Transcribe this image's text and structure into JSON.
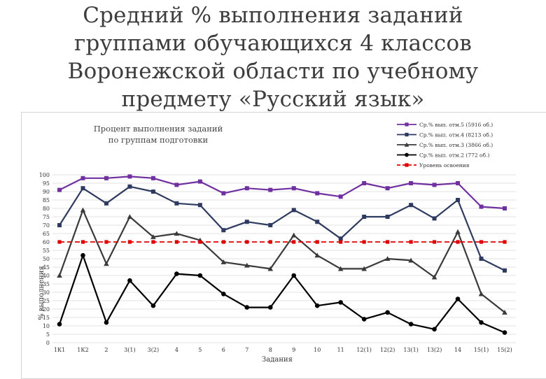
{
  "slide": {
    "title_lines": [
      "Средний % выполнения заданий",
      "группами обучающихся 4 классов",
      "Воронежской области по учебному",
      "предмету «Русский язык»"
    ]
  },
  "chart_data": {
    "type": "line",
    "title_lines": [
      "Процент выполнения заданий",
      "по группам подготовки"
    ],
    "xlabel": "Задания",
    "ylabel": "% выполнения",
    "ylim": [
      0,
      100
    ],
    "yticks": [
      0,
      5,
      10,
      15,
      20,
      25,
      30,
      35,
      40,
      45,
      50,
      55,
      60,
      65,
      70,
      75,
      80,
      85,
      90,
      95,
      100
    ],
    "grid": true,
    "legend_position": "top-right",
    "categories": [
      "1К1",
      "1К2",
      "2",
      "3(1)",
      "3(2)",
      "4",
      "5",
      "6",
      "7",
      "8",
      "9",
      "10",
      "11",
      "12(1)",
      "12(2)",
      "13(1)",
      "13(2)",
      "14",
      "15(1)",
      "15(2)"
    ],
    "series": [
      {
        "name": "Ср.% вып. отм.5 (5916 об.)",
        "color": "#7030a0",
        "marker": "square",
        "dashed": false,
        "values": [
          91,
          98,
          98,
          99,
          98,
          94,
          96,
          89,
          92,
          91,
          92,
          89,
          87,
          95,
          92,
          95,
          94,
          95,
          81,
          80
        ]
      },
      {
        "name": "Ср.% вып. отм.4 (8213 об.)",
        "color": "#2e3a5f",
        "marker": "square",
        "dashed": false,
        "values": [
          70,
          92,
          83,
          93,
          90,
          83,
          82,
          67,
          72,
          70,
          79,
          72,
          62,
          75,
          75,
          82,
          74,
          85,
          50,
          43
        ]
      },
      {
        "name": "Ср.% вып. отм.3 (3866 об.)",
        "color": "#3a3a3a",
        "marker": "triangle",
        "dashed": false,
        "values": [
          40,
          79,
          47,
          75,
          63,
          65,
          61,
          48,
          46,
          44,
          64,
          52,
          44,
          44,
          50,
          49,
          39,
          66,
          29,
          18
        ]
      },
      {
        "name": "Ср.% вып. отм.2 (772 об.)",
        "color": "#000000",
        "marker": "circle",
        "dashed": false,
        "values": [
          11,
          52,
          12,
          37,
          22,
          41,
          40,
          29,
          21,
          21,
          40,
          22,
          24,
          14,
          18,
          11,
          8,
          26,
          12,
          6
        ]
      },
      {
        "name": "Уровень освоения",
        "color": "#e00000",
        "marker": "square",
        "dashed": true,
        "values": [
          60,
          60,
          60,
          60,
          60,
          60,
          60,
          60,
          60,
          60,
          60,
          60,
          60,
          60,
          60,
          60,
          60,
          60,
          60,
          60
        ]
      }
    ]
  }
}
